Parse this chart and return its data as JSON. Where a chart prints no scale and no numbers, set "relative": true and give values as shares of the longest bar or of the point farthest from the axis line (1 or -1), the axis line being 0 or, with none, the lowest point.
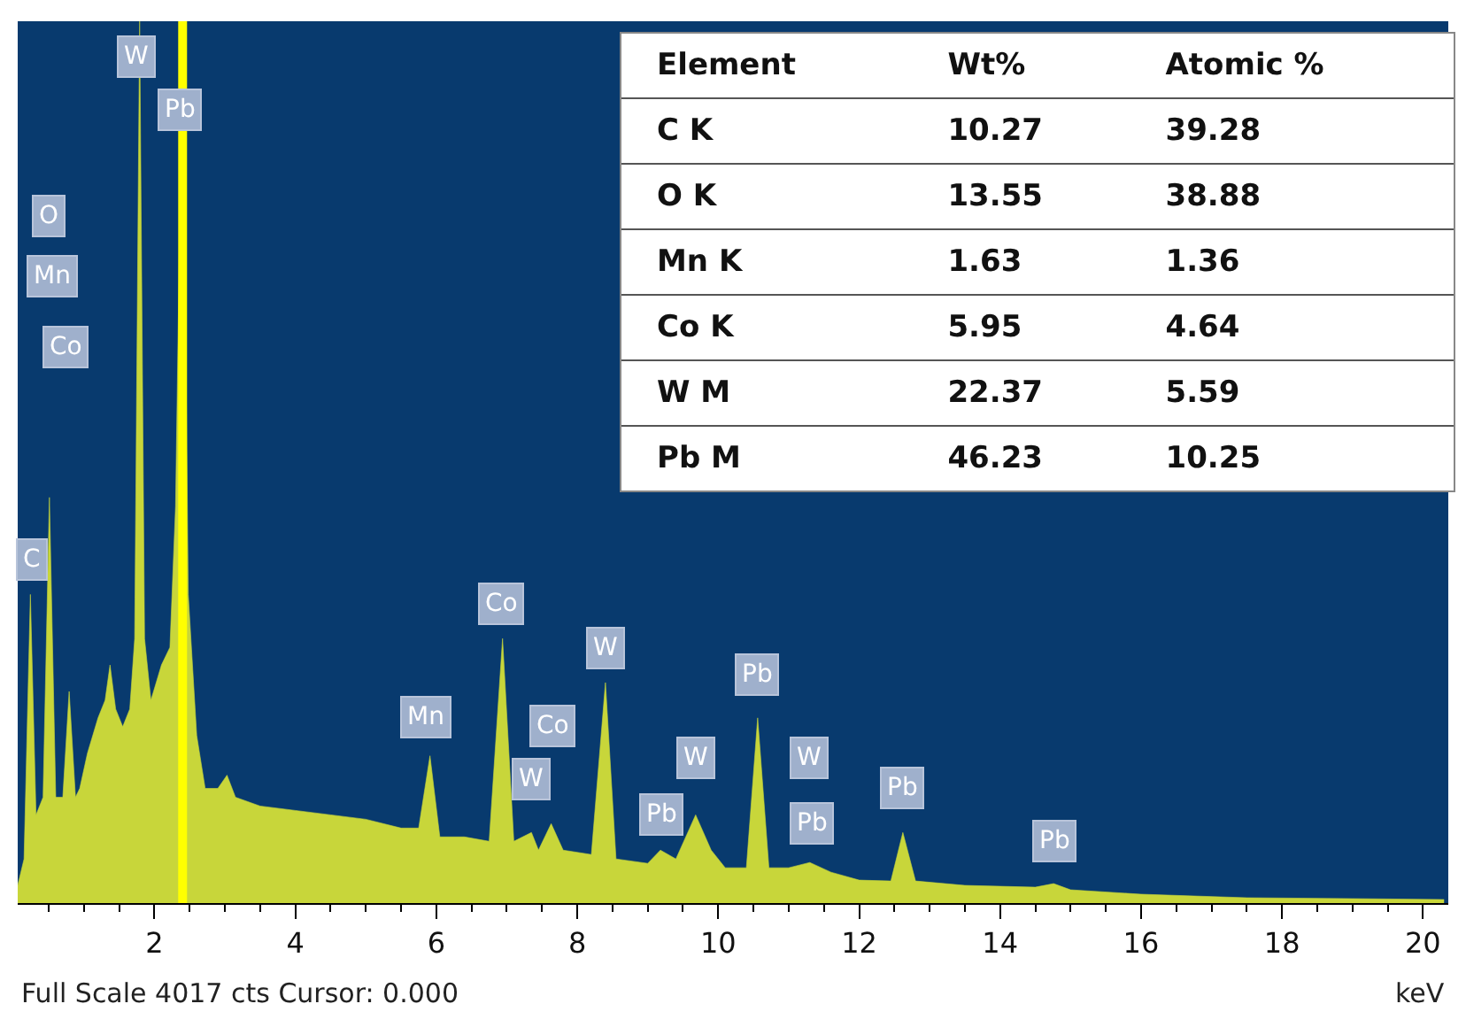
{
  "chart_data": [
    {
      "type": "area",
      "relative": true,
      "xlabel": "keV",
      "xlim": [
        0.06,
        20.36
      ],
      "xticks": [
        2,
        4,
        6,
        8,
        10,
        12,
        14,
        16,
        18,
        20
      ],
      "x": [
        0.06,
        0.15,
        0.24,
        0.32,
        0.42,
        0.51,
        0.6,
        0.7,
        0.79,
        0.88,
        0.94,
        1.05,
        1.2,
        1.3,
        1.37,
        1.45,
        1.55,
        1.65,
        1.72,
        1.79,
        1.86,
        1.95,
        2.1,
        2.22,
        2.3,
        2.4,
        2.48,
        2.6,
        2.72,
        2.9,
        3.03,
        3.15,
        3.5,
        4,
        4.5,
        5,
        5.5,
        5.75,
        5.91,
        6.05,
        6.4,
        6.75,
        6.94,
        7.1,
        7.35,
        7.45,
        7.63,
        7.8,
        8.2,
        8.4,
        8.55,
        9,
        9.18,
        9.4,
        9.68,
        9.9,
        10.1,
        10.4,
        10.56,
        10.72,
        11,
        11.3,
        11.6,
        12,
        12.45,
        12.62,
        12.8,
        13.5,
        14.5,
        14.76,
        15,
        16,
        17.5,
        19,
        20.3
      ],
      "series": [
        {
          "color": "#c8d63a",
          "values": [
            0.02,
            0.05,
            0.35,
            0.1,
            0.12,
            0.46,
            0.12,
            0.12,
            0.24,
            0.12,
            0.13,
            0.17,
            0.21,
            0.23,
            0.27,
            0.22,
            0.2,
            0.22,
            0.3,
            1,
            0.3,
            0.23,
            0.27,
            0.29,
            0.45,
            1,
            0.35,
            0.19,
            0.13,
            0.13,
            0.145,
            0.12,
            0.11,
            0.105,
            0.1,
            0.095,
            0.085,
            0.085,
            0.167,
            0.075,
            0.075,
            0.07,
            0.3,
            0.07,
            0.08,
            0.06,
            0.09,
            0.06,
            0.055,
            0.25,
            0.05,
            0.045,
            0.06,
            0.05,
            0.1,
            0.06,
            0.04,
            0.04,
            0.21,
            0.04,
            0.04,
            0.046,
            0.035,
            0.026,
            0.025,
            0.08,
            0.025,
            0.02,
            0.018,
            0.022,
            0.015,
            0.01,
            0.006,
            0.005,
            0.004
          ]
        }
      ],
      "ref_lines": [
        {
          "axis": "x",
          "value": 2.4,
          "color": "#ffff00"
        }
      ],
      "annotations": [
        {
          "text": "O",
          "x": 0.49,
          "y": 0.78
        },
        {
          "text": "Mn",
          "x": 0.56,
          "y": 0.71
        },
        {
          "text": "Co",
          "x": 0.74,
          "y": 0.63
        },
        {
          "text": "C",
          "x": 0.26,
          "y": 0.39
        },
        {
          "text": "W",
          "x": 1.74,
          "y": 0.96
        },
        {
          "text": "Pb",
          "x": 2.35,
          "y": 0.9
        },
        {
          "text": "Mn",
          "x": 5.86,
          "y": 0.21
        },
        {
          "text": "Co",
          "x": 6.92,
          "y": 0.34
        },
        {
          "text": "Co",
          "x": 7.65,
          "y": 0.2
        },
        {
          "text": "W",
          "x": 7.35,
          "y": 0.14
        },
        {
          "text": "W",
          "x": 8.4,
          "y": 0.29
        },
        {
          "text": "Pb",
          "x": 9.18,
          "y": 0.1
        },
        {
          "text": "W",
          "x": 9.68,
          "y": 0.165
        },
        {
          "text": "Pb",
          "x": 10.56,
          "y": 0.26
        },
        {
          "text": "W",
          "x": 11.29,
          "y": 0.165
        },
        {
          "text": "Pb",
          "x": 11.34,
          "y": 0.09
        },
        {
          "text": "Pb",
          "x": 12.62,
          "y": 0.13
        },
        {
          "text": "Pb",
          "x": 14.78,
          "y": 0.07
        },
        "Full Scale 4017 cts Cursor: 0.000"
      ]
    },
    {
      "type": "other",
      "annotations": [
        "Element",
        "Wt%",
        "Atomic %",
        "C K",
        "10.27",
        "39.28",
        "O K",
        "13.55",
        "38.88",
        "Mn K",
        "1.63",
        "1.36",
        "Co K",
        "5.95",
        "4.64",
        "W M",
        "22.37",
        "5.59",
        "Pb M",
        "46.23",
        "10.25"
      ]
    }
  ]
}
